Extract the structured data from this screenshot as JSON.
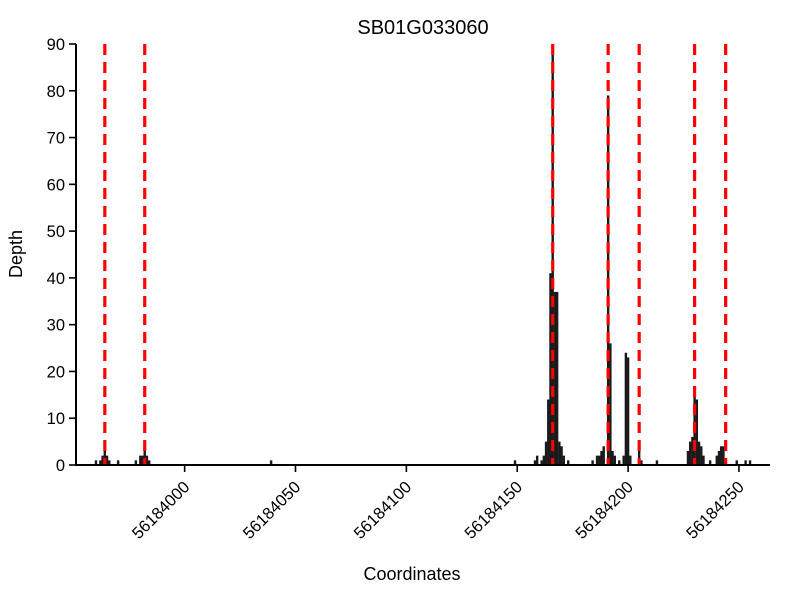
{
  "figure": {
    "title": "SB01G033060",
    "xlabel": "Coordinates",
    "ylabel": "Depth"
  },
  "colors": {
    "bar": "#1a1a1a",
    "marker_line": "#ff0000",
    "axis": "#000000",
    "background": "#ffffff"
  },
  "chart_data": {
    "type": "bar",
    "title": "SB01G033060",
    "xlabel": "Coordinates",
    "ylabel": "Depth",
    "xlim": [
      56183951,
      56184264
    ],
    "ylim": [
      0,
      90
    ],
    "x_ticks": [
      56184000,
      56184050,
      56184100,
      56184150,
      56184200,
      56184250
    ],
    "y_ticks": [
      0,
      10,
      20,
      30,
      40,
      50,
      60,
      70,
      80,
      90
    ],
    "grid": false,
    "legend": "none",
    "bar_color": "#1a1a1a",
    "bars": [
      [
        56183960,
        1
      ],
      [
        56183962,
        1
      ],
      [
        56183963,
        2
      ],
      [
        56183964,
        4
      ],
      [
        56183965,
        2
      ],
      [
        56183966,
        1
      ],
      [
        56183970,
        1
      ],
      [
        56183978,
        1
      ],
      [
        56183980,
        2
      ],
      [
        56183981,
        2
      ],
      [
        56183982,
        3
      ],
      [
        56183983,
        2
      ],
      [
        56183984,
        1
      ],
      [
        56184039,
        1
      ],
      [
        56184149,
        1
      ],
      [
        56184158,
        1
      ],
      [
        56184159,
        2
      ],
      [
        56184161,
        1
      ],
      [
        56184162,
        2
      ],
      [
        56184163,
        5
      ],
      [
        56184164,
        14
      ],
      [
        56184165,
        41
      ],
      [
        56184166,
        88
      ],
      [
        56184167,
        37
      ],
      [
        56184168,
        37
      ],
      [
        56184169,
        5
      ],
      [
        56184170,
        4
      ],
      [
        56184171,
        2
      ],
      [
        56184173,
        1
      ],
      [
        56184184,
        1
      ],
      [
        56184186,
        2
      ],
      [
        56184187,
        2
      ],
      [
        56184188,
        3
      ],
      [
        56184189,
        4
      ],
      [
        56184191,
        79
      ],
      [
        56184192,
        26
      ],
      [
        56184193,
        3
      ],
      [
        56184194,
        2
      ],
      [
        56184196,
        1
      ],
      [
        56184198,
        2
      ],
      [
        56184199,
        24
      ],
      [
        56184200,
        23
      ],
      [
        56184201,
        2
      ],
      [
        56184205,
        3
      ],
      [
        56184206,
        1
      ],
      [
        56184213,
        1
      ],
      [
        56184227,
        3
      ],
      [
        56184228,
        5
      ],
      [
        56184229,
        6
      ],
      [
        56184230,
        15
      ],
      [
        56184231,
        14
      ],
      [
        56184232,
        5
      ],
      [
        56184233,
        4
      ],
      [
        56184234,
        2
      ],
      [
        56184237,
        1
      ],
      [
        56184240,
        2
      ],
      [
        56184241,
        3
      ],
      [
        56184242,
        4
      ],
      [
        56184243,
        4
      ],
      [
        56184249,
        1
      ],
      [
        56184253,
        1
      ],
      [
        56184255,
        1
      ]
    ],
    "vlines": {
      "style": "dashed",
      "color": "#ff0000",
      "x": [
        56183964,
        56183982,
        56184166,
        56184191,
        56184205,
        56184230,
        56184244
      ]
    }
  }
}
